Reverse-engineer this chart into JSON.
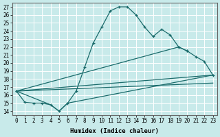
{
  "xlabel": "Humidex (Indice chaleur)",
  "bg_color": "#c8eaea",
  "grid_color": "#ffffff",
  "line_color": "#1a6b6b",
  "xlim": [
    -0.5,
    23.5
  ],
  "ylim": [
    13.5,
    27.5
  ],
  "yticks": [
    14,
    15,
    16,
    17,
    18,
    19,
    20,
    21,
    22,
    23,
    24,
    25,
    26,
    27
  ],
  "xtick_positions": [
    0,
    1,
    2,
    3,
    4,
    5,
    6,
    7,
    8,
    9,
    10,
    11,
    12,
    13,
    14,
    15,
    16,
    17,
    18,
    19,
    20,
    21,
    22,
    23
  ],
  "xtick_labels": [
    "0",
    "1",
    "2",
    "3",
    "4",
    "5",
    "6",
    "7",
    "8",
    "9",
    "10",
    "11",
    "12",
    "13",
    "14",
    "15",
    "16",
    "17",
    "18",
    "19",
    "20",
    "21",
    "22",
    "23"
  ],
  "line1_x": [
    0,
    1,
    2,
    3,
    4,
    5,
    6,
    7,
    8,
    9,
    10,
    11,
    12,
    13,
    14,
    15,
    16,
    17,
    18,
    19,
    20
  ],
  "line1_y": [
    16.5,
    15.1,
    15.0,
    15.0,
    14.8,
    14.0,
    15.0,
    16.5,
    19.5,
    22.5,
    24.5,
    26.5,
    27.0,
    27.0,
    26.0,
    24.5,
    23.3,
    24.2,
    23.5,
    22.0,
    21.5
  ],
  "line2_x": [
    0,
    19,
    20,
    21,
    22,
    23
  ],
  "line2_y": [
    16.5,
    22.0,
    21.5,
    20.8,
    20.2,
    18.5
  ],
  "line3_x": [
    0,
    23
  ],
  "line3_y": [
    16.5,
    18.5
  ],
  "line4_x": [
    0,
    23
  ],
  "line4_y": [
    16.5,
    17.5
  ],
  "line5_x": [
    0,
    4,
    5,
    6,
    23
  ],
  "line5_y": [
    16.5,
    14.8,
    14.0,
    15.0,
    18.5
  ]
}
